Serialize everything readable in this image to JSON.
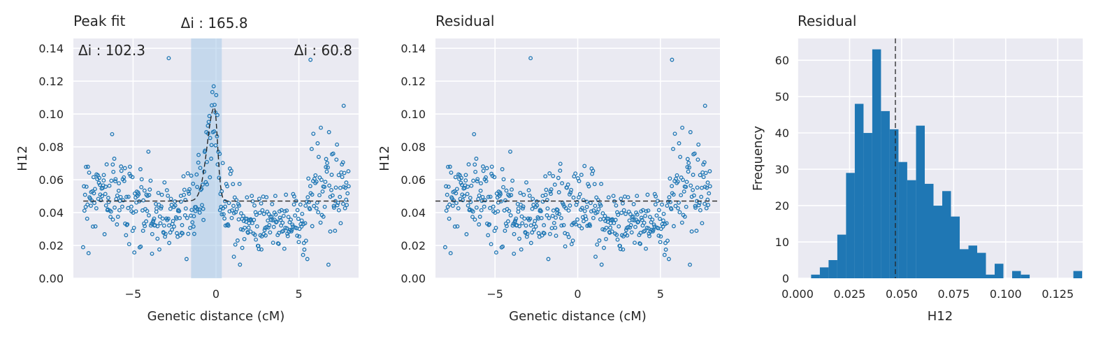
{
  "chart_data": [
    {
      "type": "scatter",
      "title": "Peak fit",
      "xlabel": "Genetic distance (cM)",
      "ylabel": "H12",
      "xlim": [
        -8.6,
        8.6
      ],
      "ylim": [
        0,
        0.146
      ],
      "xticks": [
        -5,
        0,
        5
      ],
      "xtick_labels": [
        "−5",
        "0",
        "5"
      ],
      "yticks": [
        0,
        0.02,
        0.04,
        0.06,
        0.08,
        0.1,
        0.12,
        0.14
      ],
      "ytick_labels": [
        "0.00",
        "0.02",
        "0.04",
        "0.06",
        "0.08",
        "0.10",
        "0.12",
        "0.14"
      ],
      "grid": true,
      "baseline": 0.047,
      "shaded_region": [
        -1.5,
        0.35
      ],
      "peak": {
        "center": -0.1,
        "height": 0.057,
        "width_left": 0.6,
        "width_right": 0.28
      },
      "annotations": {
        "left": "Δi : 102.3",
        "center": "Δi : 165.8",
        "right": "Δi : 60.8"
      },
      "n_points": 500
    },
    {
      "type": "scatter",
      "title": "Residual",
      "xlabel": "Genetic distance (cM)",
      "ylabel": "H12",
      "xlim": [
        -8.6,
        8.6
      ],
      "ylim": [
        0,
        0.146
      ],
      "xticks": [
        -5,
        0,
        5
      ],
      "xtick_labels": [
        "−5",
        "0",
        "5"
      ],
      "yticks": [
        0,
        0.02,
        0.04,
        0.06,
        0.08,
        0.1,
        0.12,
        0.14
      ],
      "ytick_labels": [
        "0.00",
        "0.02",
        "0.04",
        "0.06",
        "0.08",
        "0.10",
        "0.12",
        "0.14"
      ],
      "grid": true,
      "baseline": 0.047,
      "n_points": 500
    },
    {
      "type": "bar",
      "title": "Residual",
      "xlabel": "H12",
      "ylabel": "Frequency",
      "xlim": [
        0,
        0.137
      ],
      "ylim": [
        0,
        66
      ],
      "xticks": [
        0,
        0.025,
        0.05,
        0.075,
        0.1,
        0.125
      ],
      "xtick_labels": [
        "0.000",
        "0.025",
        "0.050",
        "0.075",
        "0.100",
        "0.125"
      ],
      "yticks": [
        0,
        10,
        20,
        30,
        40,
        50,
        60
      ],
      "ytick_labels": [
        "0",
        "10",
        "20",
        "30",
        "40",
        "50",
        "60"
      ],
      "grid": true,
      "vline": 0.047,
      "bin_start": 0.0065,
      "bin_width": 0.0042,
      "counts": [
        1,
        3,
        5,
        12,
        29,
        48,
        40,
        63,
        46,
        41,
        32,
        27,
        42,
        26,
        20,
        24,
        17,
        8,
        9,
        7,
        1,
        4,
        0,
        2,
        1,
        0,
        0,
        0,
        0,
        0,
        2
      ]
    }
  ],
  "colors": {
    "point": "#1f77b4",
    "bar": "#1f77b4",
    "panel_bg": "#eaeaf2",
    "grid": "#ffffff",
    "shade": "#a6c8e8",
    "dash": "#262626"
  }
}
